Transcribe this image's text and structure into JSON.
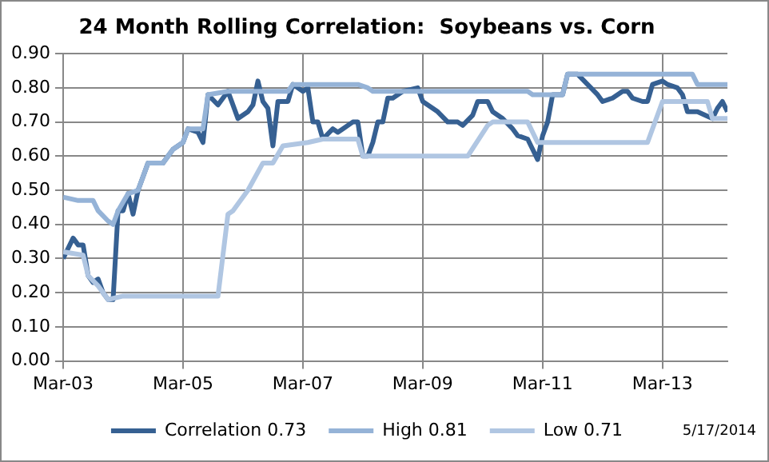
{
  "chart_data": {
    "type": "line",
    "title": "24 Month Rolling Correlation:  Soybeans vs. Corn",
    "annotations": [
      "5/17/2014"
    ],
    "legend": "bottom",
    "grid": true,
    "marker": "none",
    "line_style": "solid",
    "xlim": [
      "2003-03",
      "2014-04"
    ],
    "xticks": [
      {
        "value": "2003-03",
        "label": "Mar-03"
      },
      {
        "value": "2005-03",
        "label": "Mar-05"
      },
      {
        "value": "2007-03",
        "label": "Mar-07"
      },
      {
        "value": "2009-03",
        "label": "Mar-09"
      },
      {
        "value": "2011-03",
        "label": "Mar-11"
      },
      {
        "value": "2013-03",
        "label": "Mar-13"
      }
    ],
    "ylim": [
      0,
      0.9
    ],
    "yticks": [
      {
        "value": 0,
        "label": "0.00"
      },
      {
        "value": 0.1,
        "label": "0.10"
      },
      {
        "value": 0.2,
        "label": "0.20"
      },
      {
        "value": 0.3,
        "label": "0.30"
      },
      {
        "value": 0.4,
        "label": "0.40"
      },
      {
        "value": 0.5,
        "label": "0.50"
      },
      {
        "value": 0.6,
        "label": "0.60"
      },
      {
        "value": 0.7,
        "label": "0.70"
      },
      {
        "value": 0.8,
        "label": "0.80"
      },
      {
        "value": 0.9,
        "label": "0.90"
      }
    ],
    "series": [
      {
        "name": "Correlation 0.73",
        "color": "#366092",
        "x": [
          "2003-03",
          "2003-05",
          "2003-06",
          "2003-07",
          "2003-08",
          "2003-09",
          "2003-10",
          "2003-11",
          "2003-12",
          "2004-01",
          "2004-02",
          "2004-03",
          "2004-04",
          "2004-05",
          "2004-06",
          "2004-07",
          "2004-08",
          "2004-11",
          "2005-01",
          "2005-03",
          "2005-04",
          "2005-06",
          "2005-07",
          "2005-08",
          "2005-10",
          "2005-12",
          "2006-02",
          "2006-04",
          "2006-05",
          "2006-06",
          "2006-07",
          "2006-08",
          "2006-09",
          "2006-10",
          "2006-11",
          "2006-12",
          "2007-01",
          "2007-03",
          "2007-04",
          "2007-05",
          "2007-06",
          "2007-07",
          "2007-09",
          "2007-10",
          "2007-11",
          "2008-01",
          "2008-02",
          "2008-03",
          "2008-04",
          "2008-05",
          "2008-06",
          "2008-07",
          "2008-08",
          "2008-09",
          "2008-11",
          "2009-02",
          "2009-03",
          "2009-04",
          "2009-05",
          "2009-06",
          "2009-08",
          "2009-10",
          "2009-11",
          "2010-01",
          "2010-02",
          "2010-04",
          "2010-05",
          "2010-07",
          "2010-09",
          "2010-10",
          "2010-12",
          "2011-01",
          "2011-02",
          "2011-03",
          "2011-04",
          "2011-05",
          "2011-07",
          "2011-08",
          "2011-10",
          "2011-12",
          "2012-02",
          "2012-03",
          "2012-05",
          "2012-07",
          "2012-08",
          "2012-09",
          "2012-11",
          "2012-12",
          "2013-01",
          "2013-03",
          "2013-04",
          "2013-06",
          "2013-07",
          "2013-08",
          "2013-10",
          "2014-01",
          "2014-02",
          "2014-03",
          "2014-04"
        ],
        "values": [
          0.3,
          0.36,
          0.34,
          0.34,
          0.25,
          0.23,
          0.24,
          0.2,
          0.18,
          0.18,
          0.44,
          0.44,
          0.49,
          0.43,
          0.5,
          0.54,
          0.58,
          0.58,
          0.62,
          0.64,
          0.68,
          0.67,
          0.64,
          0.78,
          0.75,
          0.79,
          0.71,
          0.73,
          0.75,
          0.82,
          0.76,
          0.74,
          0.63,
          0.76,
          0.76,
          0.76,
          0.81,
          0.79,
          0.8,
          0.7,
          0.7,
          0.65,
          0.68,
          0.67,
          0.68,
          0.7,
          0.7,
          0.6,
          0.6,
          0.64,
          0.7,
          0.7,
          0.77,
          0.77,
          0.79,
          0.8,
          0.76,
          0.75,
          0.74,
          0.73,
          0.7,
          0.7,
          0.69,
          0.72,
          0.76,
          0.76,
          0.73,
          0.71,
          0.68,
          0.66,
          0.65,
          0.62,
          0.59,
          0.66,
          0.7,
          0.78,
          0.78,
          0.84,
          0.84,
          0.81,
          0.78,
          0.76,
          0.77,
          0.79,
          0.79,
          0.77,
          0.76,
          0.76,
          0.81,
          0.82,
          0.81,
          0.8,
          0.78,
          0.73,
          0.73,
          0.71,
          0.74,
          0.76,
          0.73
        ]
      },
      {
        "name": "High 0.81",
        "color": "#95b3d7",
        "x": [
          "2003-03",
          "2003-06",
          "2003-09",
          "2003-10",
          "2003-12",
          "2004-01",
          "2004-02",
          "2004-04",
          "2004-06",
          "2004-07",
          "2004-08",
          "2004-11",
          "2005-01",
          "2005-03",
          "2005-04",
          "2005-07",
          "2005-08",
          "2005-12",
          "2006-12",
          "2007-01",
          "2008-02",
          "2008-04",
          "2008-05",
          "2010-12",
          "2011-01",
          "2011-07",
          "2011-08",
          "2013-09",
          "2013-10",
          "2014-04"
        ],
        "values": [
          0.48,
          0.47,
          0.47,
          0.44,
          0.41,
          0.4,
          0.44,
          0.49,
          0.5,
          0.54,
          0.58,
          0.58,
          0.62,
          0.64,
          0.68,
          0.68,
          0.78,
          0.79,
          0.79,
          0.81,
          0.81,
          0.8,
          0.79,
          0.79,
          0.78,
          0.78,
          0.84,
          0.84,
          0.81,
          0.81
        ]
      },
      {
        "name": "Low 0.71",
        "color": "#b0c6e2",
        "x": [
          "2003-03",
          "2003-07",
          "2003-08",
          "2003-10",
          "2003-12",
          "2004-03",
          "2005-10",
          "2005-12",
          "2006-01",
          "2006-04",
          "2006-07",
          "2006-09",
          "2006-11",
          "2007-04",
          "2007-07",
          "2008-02",
          "2008-03",
          "2009-12",
          "2010-04",
          "2010-05",
          "2010-12",
          "2011-02",
          "2012-12",
          "2013-03",
          "2013-12",
          "2014-01",
          "2014-04"
        ],
        "values": [
          0.32,
          0.31,
          0.25,
          0.22,
          0.18,
          0.19,
          0.19,
          0.43,
          0.44,
          0.5,
          0.58,
          0.58,
          0.63,
          0.64,
          0.65,
          0.65,
          0.6,
          0.6,
          0.69,
          0.7,
          0.7,
          0.64,
          0.64,
          0.76,
          0.76,
          0.71,
          0.71
        ]
      }
    ]
  }
}
